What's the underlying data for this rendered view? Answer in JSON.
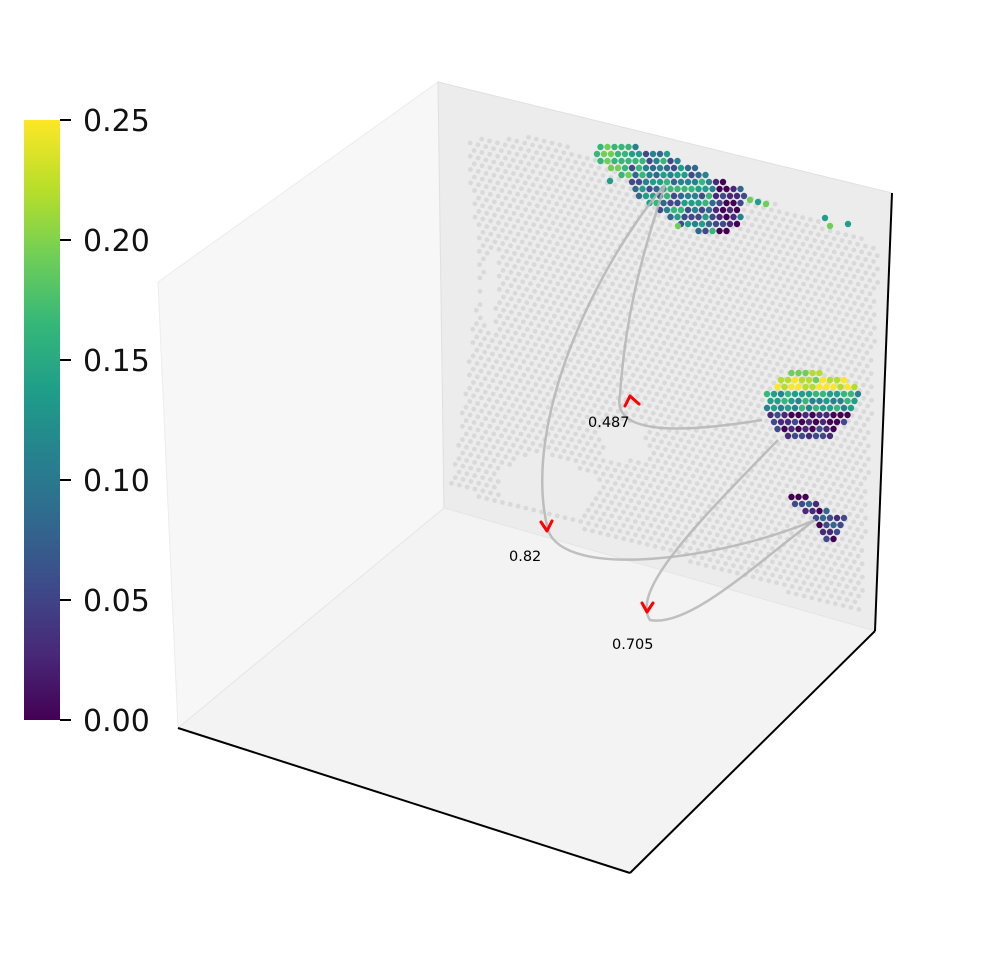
{
  "chart_data": {
    "type": "scatter",
    "title": "",
    "xlabel": "",
    "ylabel": "",
    "colormap": "viridis",
    "colorbar": {
      "range": [
        0,
        0.25
      ],
      "ticks": [
        "0.00",
        "0.05",
        "0.10",
        "0.15",
        "0.20",
        "0.25"
      ],
      "colors": [
        "#440154",
        "#482878",
        "#3e4a89",
        "#31688e",
        "#26828e",
        "#1f9e89",
        "#35b779",
        "#6ece58",
        "#b5de2b",
        "#fde725"
      ]
    },
    "background_spot_color": "#d9d9d9",
    "grid": false,
    "edges": [
      {
        "label": "0.487",
        "value": 0.487,
        "arrow_color": "#ff0000"
      },
      {
        "label": "0.82",
        "value": 0.82,
        "arrow_color": "#ff0000"
      },
      {
        "label": "0.705",
        "value": 0.705,
        "arrow_color": "#ff0000"
      }
    ]
  }
}
